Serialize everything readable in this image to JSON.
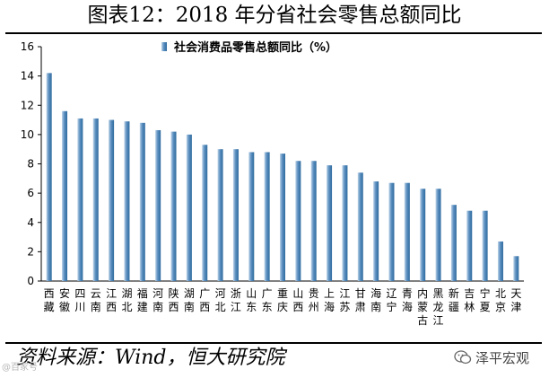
{
  "figure_title": "图表12：2018 年分省社会零售总额同比",
  "source": "资料来源：Wind，恒大研究院",
  "watermark_left": "@百家号",
  "watermark": "泽平宏观",
  "colors": {
    "bar_light": "#bcd3e8",
    "bar_dark": "#2f6b9e",
    "bar_mid": "#5b8fc0",
    "axis": "#000000"
  },
  "chart_data": {
    "type": "bar",
    "legend_position": "top-center",
    "grid": false,
    "ylim": [
      0,
      16
    ],
    "yticks": [
      0,
      2,
      4,
      6,
      8,
      10,
      12,
      14,
      16
    ],
    "series": [
      {
        "name": "社会消费品零售总额同比（%）",
        "values": [
          14.2,
          11.6,
          11.1,
          11.1,
          11.0,
          10.9,
          10.8,
          10.3,
          10.2,
          10.0,
          9.3,
          9.0,
          9.0,
          8.8,
          8.8,
          8.7,
          8.2,
          8.2,
          7.9,
          7.9,
          7.4,
          6.8,
          6.7,
          6.7,
          6.3,
          6.3,
          5.2,
          4.8,
          4.8,
          2.7,
          1.7
        ]
      }
    ],
    "categories": [
      "西藏",
      "安徽",
      "四川",
      "云南",
      "江西",
      "湖北",
      "福建",
      "河南",
      "陕西",
      "湖南",
      "广西",
      "河北",
      "浙江",
      "山东",
      "广东",
      "重庆",
      "山西",
      "贵州",
      "上海",
      "江苏",
      "甘肃",
      "海南",
      "辽宁",
      "青海",
      "内蒙古",
      "黑龙江",
      "新疆",
      "吉林",
      "宁夏",
      "北京",
      "天津"
    ]
  }
}
